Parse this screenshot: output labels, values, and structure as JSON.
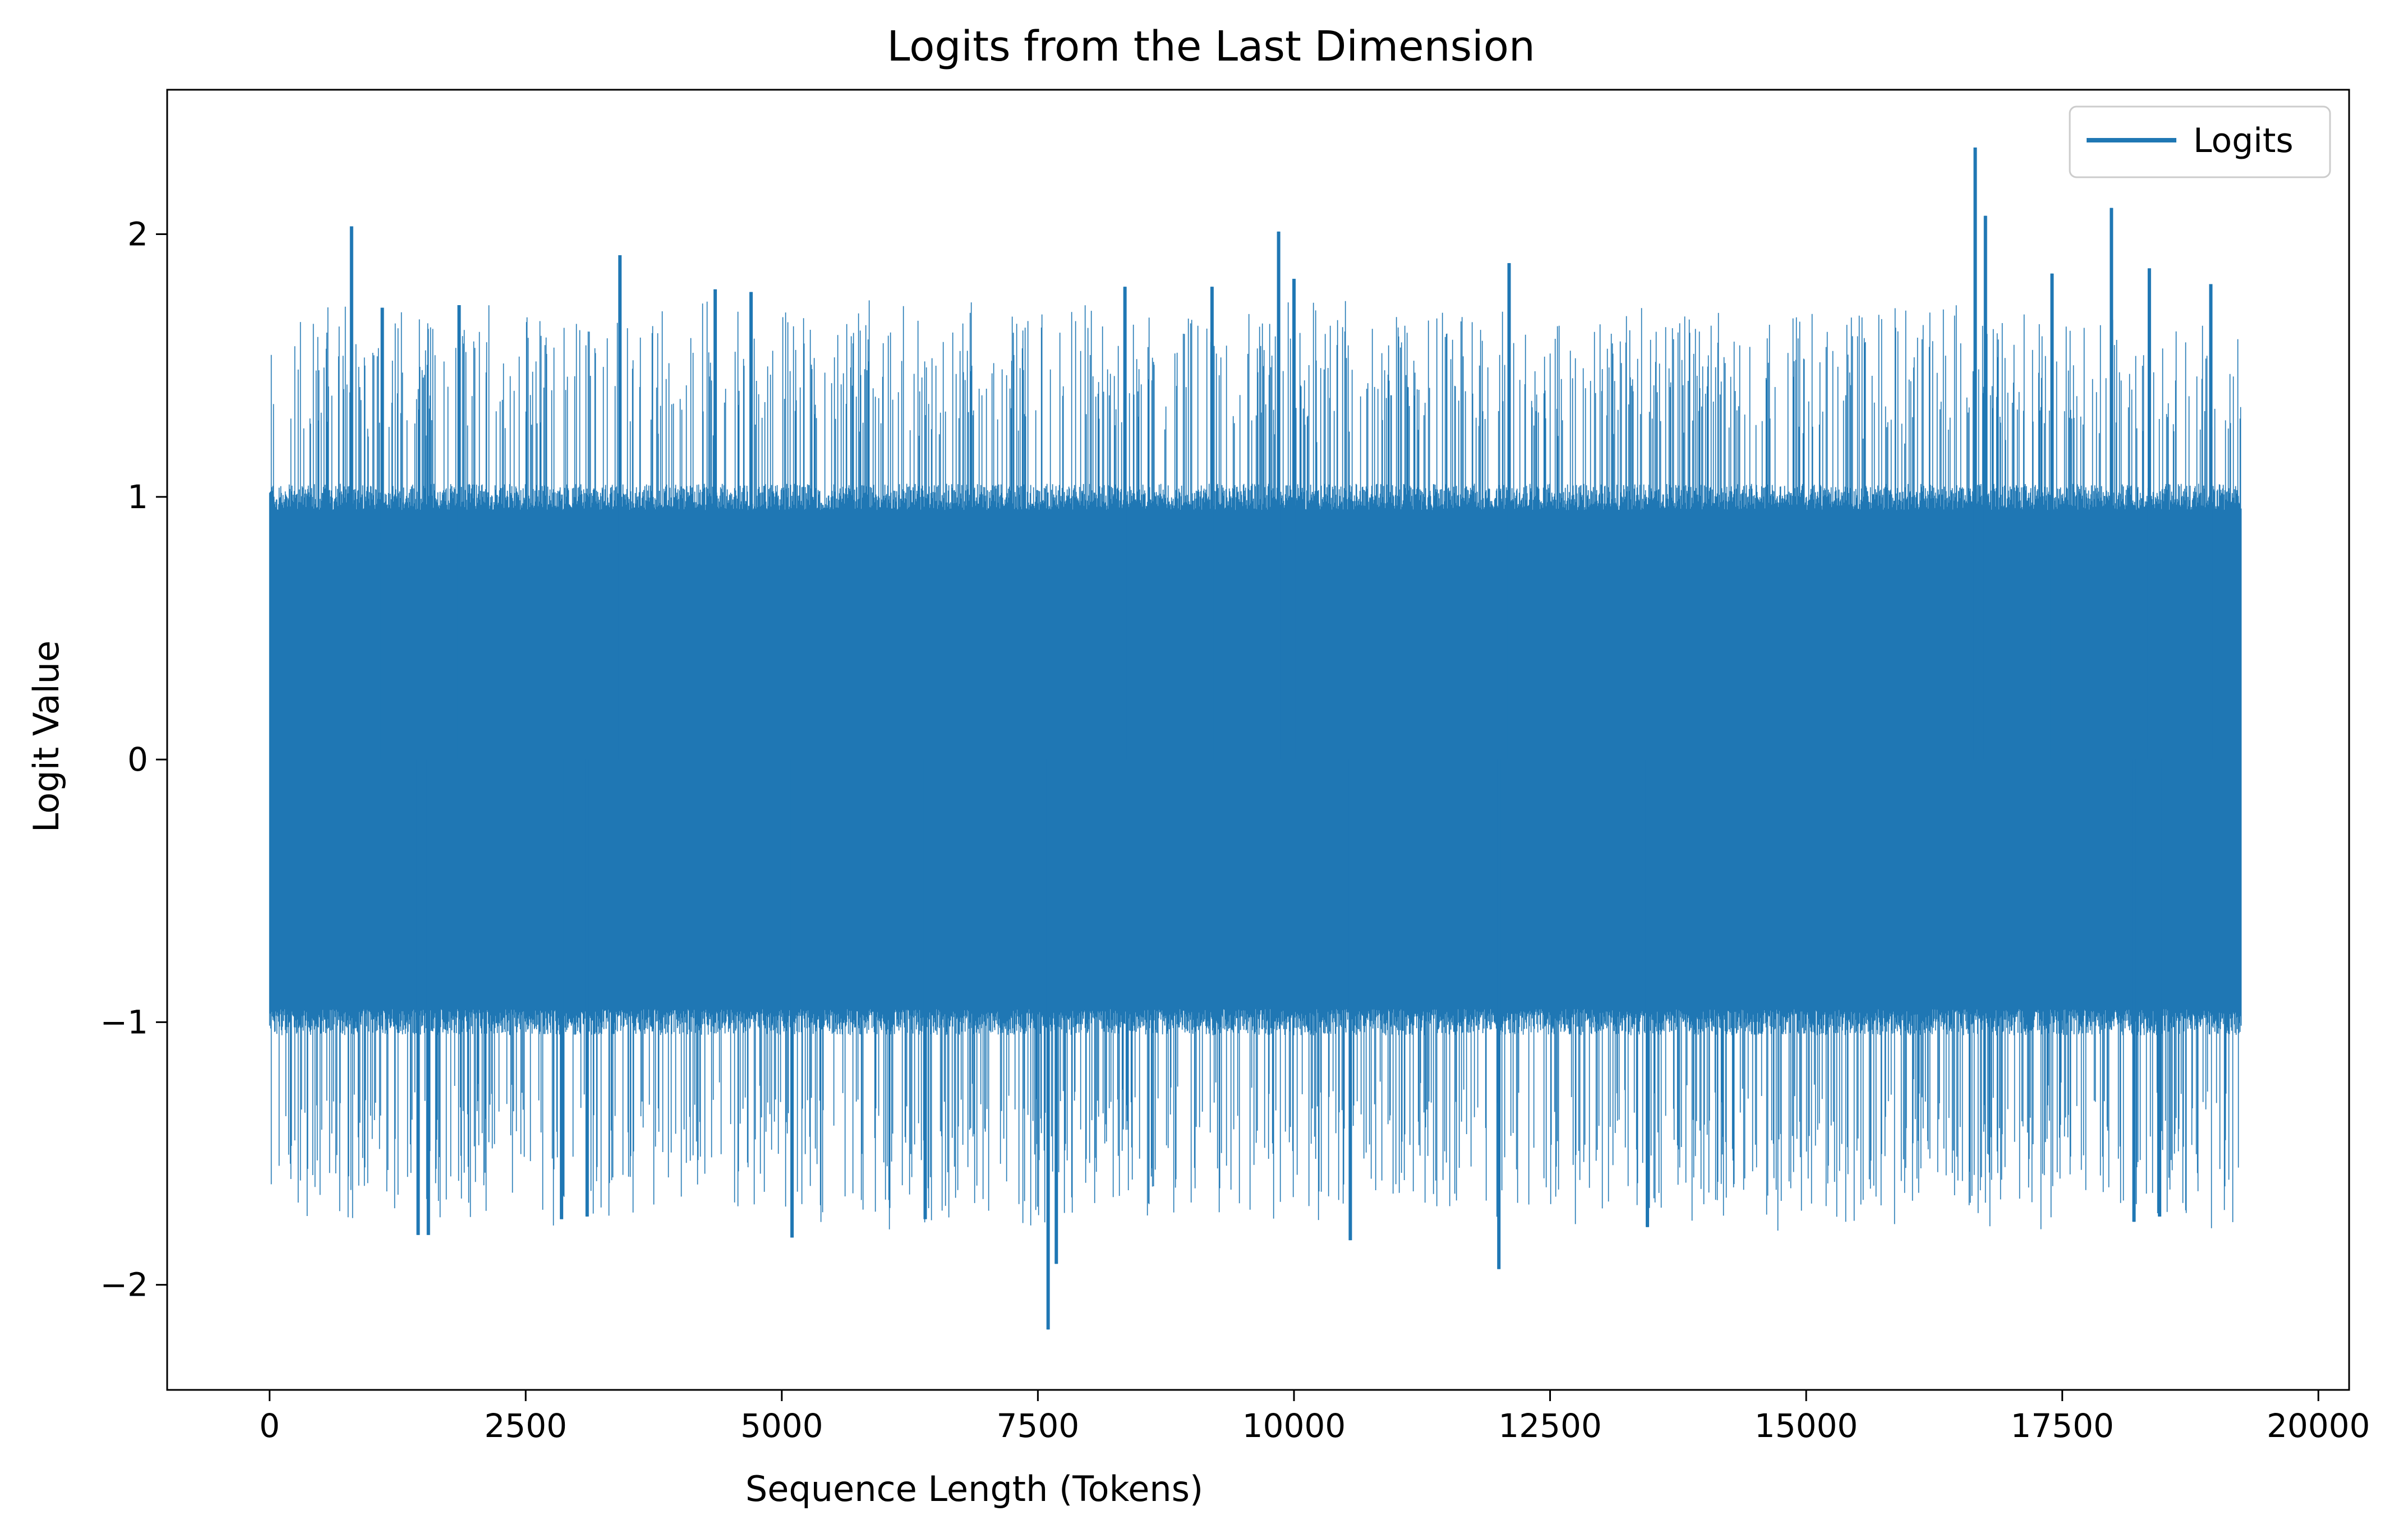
{
  "chart_data": {
    "type": "line",
    "title": "Logits from the Last Dimension",
    "xlabel": "Sequence Length (Tokens)",
    "ylabel": "Logit Value",
    "xlim": [
      -1000,
      20300
    ],
    "ylim": [
      -2.4,
      2.55
    ],
    "x_ticks": [
      0,
      2500,
      5000,
      7500,
      10000,
      12500,
      15000,
      17500,
      20000
    ],
    "x_tick_labels": [
      "0",
      "2500",
      "5000",
      "7500",
      "10000",
      "12500",
      "15000",
      "17500",
      "20000"
    ],
    "y_ticks": [
      -2,
      -1,
      0,
      1,
      2
    ],
    "y_tick_labels": [
      "−2",
      "−1",
      "0",
      "1",
      "2"
    ],
    "grid": false,
    "legend_position": "upper right",
    "series": [
      {
        "name": "Logits",
        "color": "#1f77b4",
        "x_range": [
          0,
          19250
        ],
        "n_points": 19250,
        "typical_band": [
          -0.95,
          0.95
        ],
        "min": -2.17,
        "max": 2.33,
        "peaks": [
          {
            "x": 800,
            "y": 2.03
          },
          {
            "x": 1100,
            "y": 1.72
          },
          {
            "x": 1850,
            "y": 1.73
          },
          {
            "x": 3420,
            "y": 1.92
          },
          {
            "x": 4350,
            "y": 1.79
          },
          {
            "x": 4700,
            "y": 1.78
          },
          {
            "x": 8350,
            "y": 1.8
          },
          {
            "x": 9200,
            "y": 1.8
          },
          {
            "x": 9850,
            "y": 2.01
          },
          {
            "x": 10000,
            "y": 1.83
          },
          {
            "x": 12100,
            "y": 1.89
          },
          {
            "x": 16650,
            "y": 2.33
          },
          {
            "x": 16750,
            "y": 2.07
          },
          {
            "x": 17400,
            "y": 1.85
          },
          {
            "x": 17980,
            "y": 2.1
          },
          {
            "x": 18350,
            "y": 1.87
          },
          {
            "x": 18950,
            "y": 1.81
          }
        ],
        "troughs": [
          {
            "x": 1450,
            "y": -1.81
          },
          {
            "x": 1550,
            "y": -1.81
          },
          {
            "x": 2850,
            "y": -1.75
          },
          {
            "x": 3100,
            "y": -1.74
          },
          {
            "x": 5100,
            "y": -1.82
          },
          {
            "x": 6400,
            "y": -1.75
          },
          {
            "x": 7600,
            "y": -2.17
          },
          {
            "x": 7680,
            "y": -1.92
          },
          {
            "x": 10550,
            "y": -1.83
          },
          {
            "x": 12000,
            "y": -1.94
          },
          {
            "x": 13450,
            "y": -1.78
          },
          {
            "x": 18200,
            "y": -1.76
          },
          {
            "x": 18450,
            "y": -1.74
          }
        ]
      }
    ]
  }
}
